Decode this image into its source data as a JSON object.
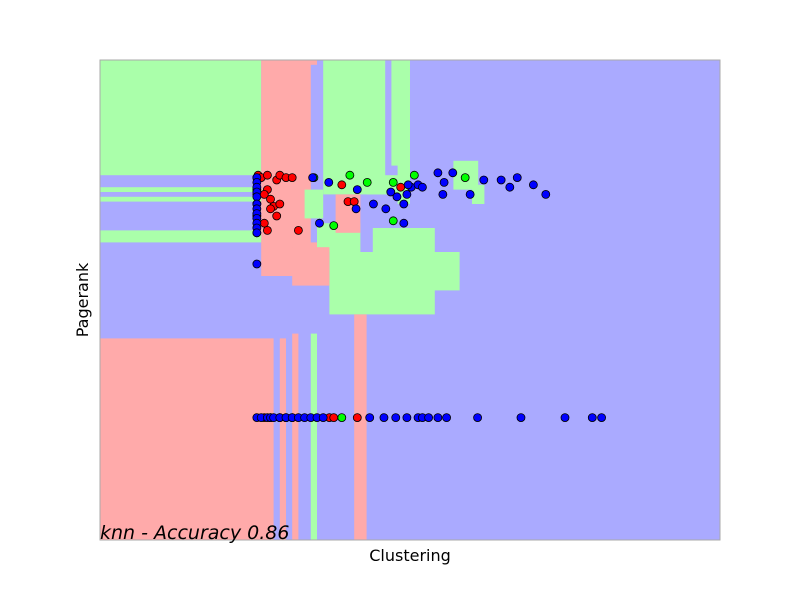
{
  "chart_data": {
    "type": "scatter",
    "title": "",
    "xlabel": "Clustering",
    "ylabel": "Pagerank",
    "annotation": "knn - Accuracy 0.86",
    "xlim": [
      0,
      1
    ],
    "ylim": [
      0,
      1
    ],
    "ticks_visible": false,
    "grid": false,
    "legend": "none",
    "colors": {
      "region_green": "#aaffaa",
      "region_red": "#ffaaaa",
      "region_blue": "#aaaaff",
      "point_green": "#00ff00",
      "point_red": "#ff0000",
      "point_blue": "#0000ff",
      "point_edge": "#000000"
    },
    "background": "blue",
    "regions": [
      {
        "class": "green",
        "x": [
          0.0,
          0.26
        ],
        "y": [
          0.76,
          1.0
        ]
      },
      {
        "class": "red",
        "x": [
          0.26,
          0.35
        ],
        "y": [
          0.55,
          1.0
        ]
      },
      {
        "class": "blue",
        "x": [
          0.34,
          0.36
        ],
        "y": [
          0.62,
          0.99
        ]
      },
      {
        "class": "green",
        "x": [
          0.36,
          0.46
        ],
        "y": [
          0.72,
          1.0
        ]
      },
      {
        "class": "green",
        "x": [
          0.47,
          0.5
        ],
        "y": [
          0.78,
          1.0
        ]
      },
      {
        "class": "green",
        "x": [
          0.48,
          0.5
        ],
        "y": [
          0.7,
          0.8
        ]
      },
      {
        "class": "green",
        "x": [
          0.43,
          0.5
        ],
        "y": [
          0.72,
          0.76
        ]
      },
      {
        "class": "green",
        "x": [
          0.0,
          0.26
        ],
        "y": [
          0.725,
          0.735
        ]
      },
      {
        "class": "green",
        "x": [
          0.0,
          0.26
        ],
        "y": [
          0.705,
          0.715
        ]
      },
      {
        "class": "green",
        "x": [
          0.0,
          0.26
        ],
        "y": [
          0.62,
          0.645
        ]
      },
      {
        "class": "green",
        "x": [
          0.37,
          0.58
        ],
        "y": [
          0.52,
          0.6
        ]
      },
      {
        "class": "green",
        "x": [
          0.37,
          0.54
        ],
        "y": [
          0.47,
          0.53
        ]
      },
      {
        "class": "green",
        "x": [
          0.35,
          0.42
        ],
        "y": [
          0.6,
          0.66
        ]
      },
      {
        "class": "green",
        "x": [
          0.44,
          0.54
        ],
        "y": [
          0.59,
          0.65
        ]
      },
      {
        "class": "green",
        "x": [
          0.33,
          0.36
        ],
        "y": [
          0.67,
          0.73
        ]
      },
      {
        "class": "green",
        "x": [
          0.57,
          0.61
        ],
        "y": [
          0.73,
          0.79
        ]
      },
      {
        "class": "green",
        "x": [
          0.6,
          0.62
        ],
        "y": [
          0.7,
          0.74
        ]
      },
      {
        "class": "red",
        "x": [
          0.38,
          0.42
        ],
        "y": [
          0.64,
          0.72
        ]
      },
      {
        "class": "red",
        "x": [
          0.31,
          0.37
        ],
        "y": [
          0.53,
          0.61
        ]
      },
      {
        "class": "red",
        "x": [
          0.0,
          0.28
        ],
        "y": [
          0.0,
          0.42
        ]
      },
      {
        "class": "red",
        "x": [
          0.29,
          0.3
        ],
        "y": [
          0.0,
          0.42
        ]
      },
      {
        "class": "red",
        "x": [
          0.31,
          0.32
        ],
        "y": [
          0.0,
          0.43
        ]
      },
      {
        "class": "red",
        "x": [
          0.41,
          0.43
        ],
        "y": [
          0.0,
          0.47
        ]
      },
      {
        "class": "green",
        "x": [
          0.34,
          0.35
        ],
        "y": [
          0.0,
          0.43
        ]
      }
    ],
    "series": [
      {
        "name": "",
        "color": "green",
        "x": [
          0.253,
          0.253,
          0.253,
          0.253,
          0.253,
          0.253,
          0.345,
          0.403,
          0.431,
          0.473,
          0.507,
          0.589,
          0.377,
          0.473,
          0.31,
          0.39
        ],
        "y": [
          0.755,
          0.73,
          0.72,
          0.7,
          0.675,
          0.64,
          0.755,
          0.76,
          0.745,
          0.745,
          0.76,
          0.755,
          0.655,
          0.665,
          0.255,
          0.255
        ]
      },
      {
        "name": "",
        "color": "red",
        "x": [
          0.255,
          0.26,
          0.27,
          0.285,
          0.29,
          0.3,
          0.31,
          0.27,
          0.265,
          0.275,
          0.28,
          0.29,
          0.275,
          0.285,
          0.265,
          0.27,
          0.32,
          0.39,
          0.4,
          0.41,
          0.485,
          0.37,
          0.265,
          0.275,
          0.29,
          0.3,
          0.377,
          0.415
        ],
        "y": [
          0.76,
          0.755,
          0.76,
          0.75,
          0.76,
          0.755,
          0.755,
          0.73,
          0.72,
          0.71,
          0.695,
          0.7,
          0.69,
          0.675,
          0.66,
          0.645,
          0.645,
          0.74,
          0.705,
          0.705,
          0.735,
          0.255,
          0.255,
          0.255,
          0.255,
          0.255,
          0.255,
          0.255
        ]
      },
      {
        "name": "",
        "color": "blue",
        "x": [
          0.253,
          0.253,
          0.253,
          0.253,
          0.253,
          0.253,
          0.253,
          0.253,
          0.253,
          0.253,
          0.253,
          0.253,
          0.253,
          0.253,
          0.354,
          0.369,
          0.415,
          0.461,
          0.469,
          0.479,
          0.49,
          0.495,
          0.502,
          0.497,
          0.513,
          0.52,
          0.545,
          0.553,
          0.555,
          0.569,
          0.597,
          0.619,
          0.647,
          0.661,
          0.673,
          0.699,
          0.719,
          0.343,
          0.413,
          0.441,
          0.49,
          0.26,
          0.27,
          0.275,
          0.28,
          0.29,
          0.3,
          0.31,
          0.32,
          0.33,
          0.34,
          0.35,
          0.36,
          0.435,
          0.458,
          0.477,
          0.495,
          0.513,
          0.52,
          0.53,
          0.545,
          0.559,
          0.609,
          0.679,
          0.75,
          0.794,
          0.809
        ],
        "y": [
          0.755,
          0.745,
          0.735,
          0.725,
          0.715,
          0.7,
          0.69,
          0.68,
          0.67,
          0.66,
          0.65,
          0.64,
          0.575,
          0.255,
          0.66,
          0.745,
          0.73,
          0.69,
          0.725,
          0.715,
          0.7,
          0.72,
          0.735,
          0.74,
          0.74,
          0.735,
          0.765,
          0.72,
          0.745,
          0.765,
          0.72,
          0.75,
          0.75,
          0.735,
          0.755,
          0.74,
          0.72,
          0.755,
          0.69,
          0.7,
          0.66,
          0.255,
          0.255,
          0.255,
          0.255,
          0.255,
          0.255,
          0.255,
          0.255,
          0.255,
          0.255,
          0.255,
          0.255,
          0.255,
          0.255,
          0.255,
          0.255,
          0.255,
          0.255,
          0.255,
          0.255,
          0.255,
          0.255,
          0.255,
          0.255,
          0.255,
          0.255
        ]
      }
    ]
  }
}
